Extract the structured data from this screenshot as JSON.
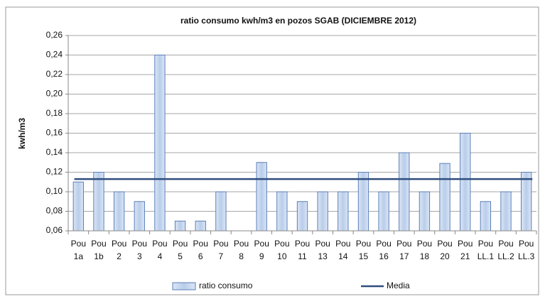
{
  "chart_data": {
    "type": "bar",
    "title": "ratio consumo  kwh/m3 en pozos SGAB (DICIEMBRE 2012)",
    "y_label": "kwh/m3",
    "categories": [
      [
        "Pou",
        "1a"
      ],
      [
        "Pou",
        "1b"
      ],
      [
        "Pou",
        "2"
      ],
      [
        "Pou",
        "3"
      ],
      [
        "Pou",
        "4"
      ],
      [
        "Pou",
        "5"
      ],
      [
        "Pou",
        "6"
      ],
      [
        "Pou",
        "7"
      ],
      [
        "Pou",
        "8"
      ],
      [
        "Pou",
        "9"
      ],
      [
        "Pou",
        "10"
      ],
      [
        "Pou",
        "11"
      ],
      [
        "Pou",
        "13"
      ],
      [
        "Pou",
        "14"
      ],
      [
        "Pou",
        "15"
      ],
      [
        "Pou",
        "16"
      ],
      [
        "Pou",
        "17"
      ],
      [
        "Pou",
        "18"
      ],
      [
        "Pou",
        "20"
      ],
      [
        "Pou",
        "21"
      ],
      [
        "Pou",
        "LL.1"
      ],
      [
        "Pou",
        "LL.2"
      ],
      [
        "Pou",
        "LL.3"
      ]
    ],
    "series": [
      {
        "name": "ratio consumo",
        "color": "#b9cdea",
        "values": [
          0.11,
          0.12,
          0.1,
          0.09,
          0.24,
          0.07,
          0.07,
          0.1,
          null,
          0.13,
          0.1,
          0.09,
          0.1,
          0.1,
          0.12,
          0.1,
          0.14,
          0.1,
          0.129,
          0.16,
          0.09,
          0.1,
          0.12
        ]
      }
    ],
    "reference_line": {
      "name": "Media",
      "value": 0.113,
      "color": "#2f4d7e"
    },
    "ylim": [
      0.06,
      0.26
    ],
    "yticks": [
      {
        "value": 0.06,
        "label": "0,06"
      },
      {
        "value": 0.08,
        "label": "0,08"
      },
      {
        "value": 0.1,
        "label": "0,10"
      },
      {
        "value": 0.12,
        "label": "0,12"
      },
      {
        "value": 0.14,
        "label": "0,14"
      },
      {
        "value": 0.16,
        "label": "0,16"
      },
      {
        "value": 0.18,
        "label": "0,18"
      },
      {
        "value": 0.2,
        "label": "0,20"
      },
      {
        "value": 0.22,
        "label": "0,22"
      },
      {
        "value": 0.24,
        "label": "0,24"
      },
      {
        "value": 0.26,
        "label": "0,26"
      }
    ],
    "grid": true
  }
}
